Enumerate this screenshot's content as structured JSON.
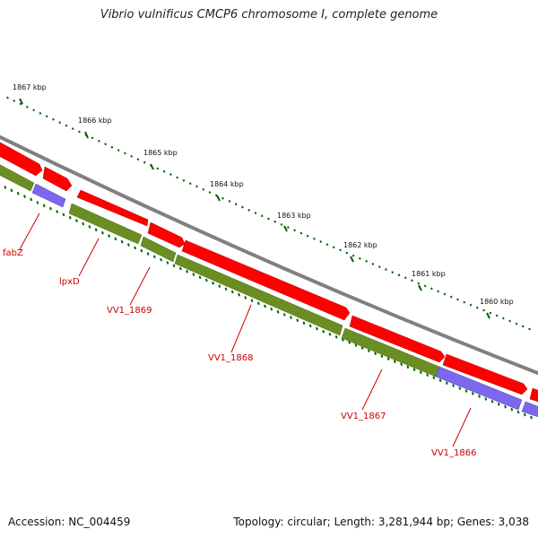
{
  "title": "Vibrio vulnificus CMCP6 chromosome I, complete genome",
  "footer": {
    "accession": "Accession: NC_004459",
    "topology": "Topology: circular; Length: 3,281,944 bp; Genes: 3,038"
  },
  "colors": {
    "backbone": "#808080",
    "cds": "#ff0000",
    "gene": "#6b8e23",
    "other": "#7b68ee",
    "ticks": "#006400",
    "labels": "#cc0000"
  },
  "scale": {
    "unit": "kbp",
    "ticks": [
      "1867 kbp",
      "1866 kbp",
      "1865 kbp",
      "1864 kbp",
      "1863 kbp",
      "1862 kbp",
      "1861 kbp",
      "1860 kbp"
    ]
  },
  "genes": [
    "fabZ",
    "lpxD",
    "VV1_1869",
    "VV1_1868",
    "VV1_1867",
    "VV1_1866"
  ]
}
